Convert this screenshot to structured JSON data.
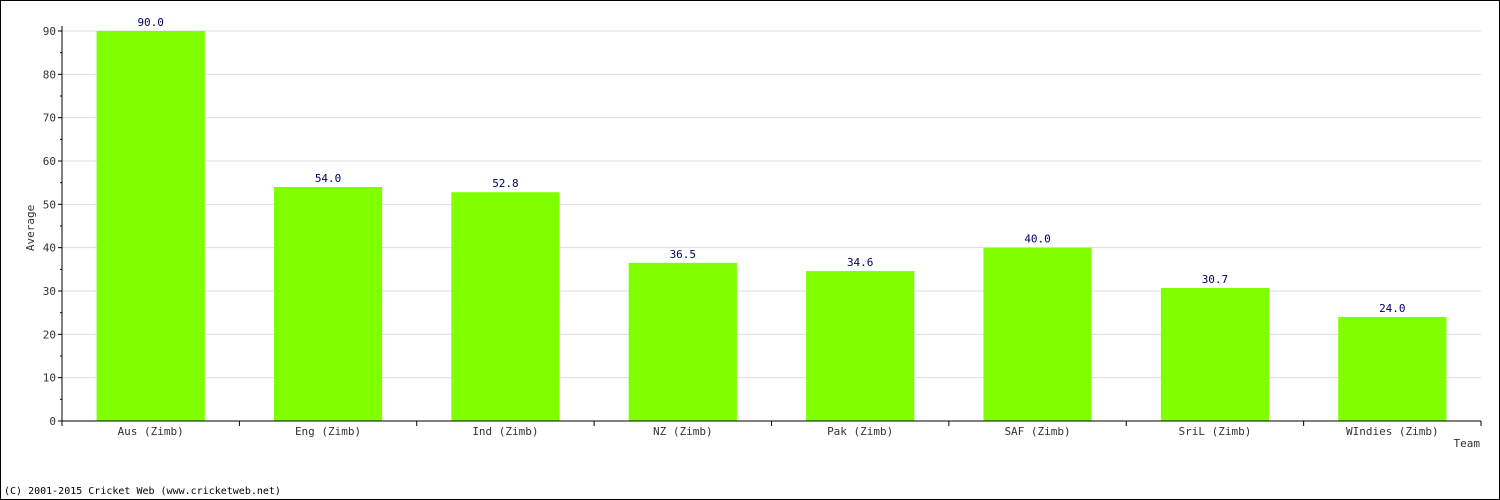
{
  "chart_data": {
    "type": "bar",
    "title": "",
    "xlabel": "Team",
    "ylabel": "Average",
    "categories": [
      "Aus (Zimb)",
      "Eng (Zimb)",
      "Ind (Zimb)",
      "NZ (Zimb)",
      "Pak (Zimb)",
      "SAF (Zimb)",
      "SriL (Zimb)",
      "WIndies (Zimb)"
    ],
    "values": [
      90.0,
      54.0,
      52.8,
      36.5,
      34.6,
      40.0,
      30.7,
      24.0
    ],
    "value_labels": [
      "90.0",
      "54.0",
      "52.8",
      "36.5",
      "34.6",
      "40.0",
      "30.7",
      "24.0"
    ],
    "ylim": [
      0,
      90
    ],
    "yticks": [
      0,
      10,
      20,
      30,
      40,
      50,
      60,
      70,
      80,
      90
    ],
    "grid": true,
    "bar_color": "#80ff00",
    "label_color": "#000066"
  },
  "footer": {
    "copyright": "(C) 2001-2015 Cricket Web (www.cricketweb.net)"
  }
}
